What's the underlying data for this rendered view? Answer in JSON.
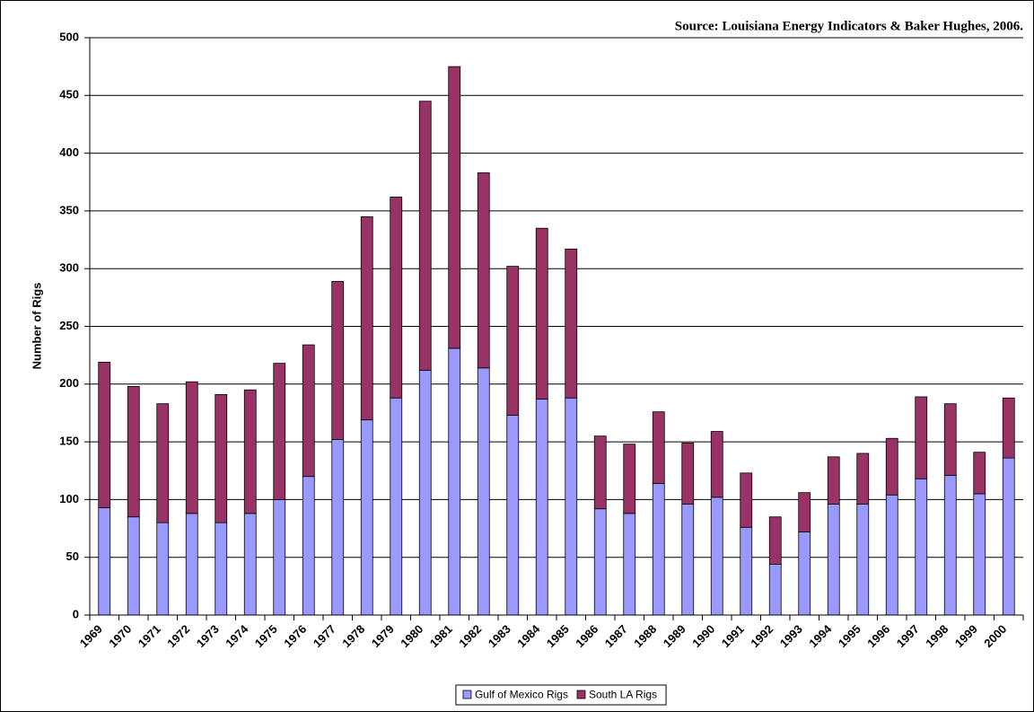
{
  "chart_data": {
    "type": "stacked_bar",
    "annotation": "Source: Louisiana Energy Indicators & Baker Hughes, 2006.",
    "y_label": "Number of Rigs",
    "categories": [
      "1969",
      "1970",
      "1971",
      "1972",
      "1973",
      "1974",
      "1975",
      "1976",
      "1977",
      "1978",
      "1979",
      "1980",
      "1981",
      "1982",
      "1983",
      "1984",
      "1985",
      "1986",
      "1987",
      "1988",
      "1989",
      "1990",
      "1991",
      "1992",
      "1993",
      "1994",
      "1995",
      "1996",
      "1997",
      "1998",
      "1999",
      "2000"
    ],
    "series": [
      {
        "name": "Gulf of Mexico Rigs",
        "color": "#9999ff",
        "values": [
          93,
          85,
          80,
          88,
          80,
          88,
          100,
          120,
          152,
          169,
          188,
          212,
          231,
          214,
          173,
          187,
          188,
          92,
          88,
          114,
          96,
          102,
          76,
          44,
          72,
          96,
          96,
          104,
          118,
          121,
          105,
          136
        ]
      },
      {
        "name": "South LA Rigs",
        "color": "#993366",
        "values": [
          126,
          113,
          103,
          114,
          111,
          107,
          118,
          114,
          137,
          176,
          174,
          233,
          244,
          169,
          129,
          148,
          129,
          63,
          60,
          62,
          53,
          57,
          47,
          41,
          34,
          41,
          44,
          49,
          71,
          62,
          36,
          52
        ]
      }
    ],
    "ylim": [
      0,
      500
    ],
    "yticks": [
      0,
      50,
      100,
      150,
      200,
      250,
      300,
      350,
      400,
      450,
      500
    ],
    "grid": true,
    "legend": "bottom"
  }
}
